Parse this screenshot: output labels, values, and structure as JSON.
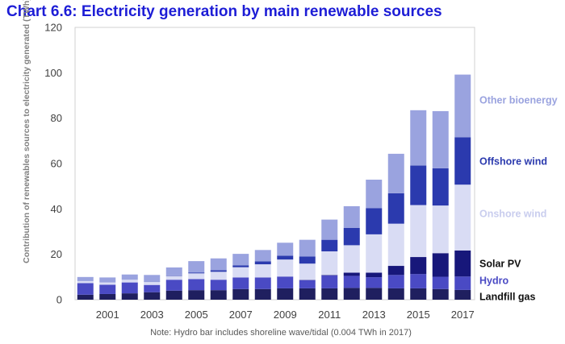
{
  "chart_data": {
    "type": "bar",
    "stacked": true,
    "title": "Chart 6.6: Electricity generation by main renewable sources",
    "ylabel": "Contribution of  renewables sources to electricity generated (TWh)",
    "ylim": [
      0,
      120
    ],
    "yticks": [
      0,
      20,
      40,
      60,
      80,
      100,
      120
    ],
    "grid": false,
    "legend_position": "right",
    "note": "Note: Hydro bar includes shoreline wave/tidal (0.004 TWh in 2017)",
    "categories": [
      "2000",
      "2001",
      "2002",
      "2003",
      "2004",
      "2005",
      "2006",
      "2007",
      "2008",
      "2009",
      "2010",
      "2011",
      "2012",
      "2013",
      "2014",
      "2015",
      "2016",
      "2017"
    ],
    "x_tick_labels": [
      "2001",
      "2003",
      "2005",
      "2007",
      "2009",
      "2011",
      "2013",
      "2015",
      "2017"
    ],
    "series": [
      {
        "name": "Landfill gas",
        "color": "#1f1f5f",
        "values": [
          2.2,
          2.5,
          2.8,
          3.3,
          4.0,
          4.2,
          4.2,
          4.7,
          4.7,
          5.0,
          5.0,
          5.0,
          5.2,
          5.2,
          5.0,
          5.0,
          4.7,
          4.3
        ]
      },
      {
        "name": "Hydro",
        "color": "#4a4ac4",
        "values": [
          5.1,
          4.1,
          4.8,
          3.2,
          4.8,
          4.9,
          4.6,
          5.1,
          5.1,
          5.2,
          3.6,
          5.7,
          5.3,
          4.7,
          5.9,
          6.3,
          5.4,
          5.9
        ]
      },
      {
        "name": "Solar PV",
        "color": "#17177a",
        "values": [
          0.0,
          0.0,
          0.0,
          0.0,
          0.0,
          0.0,
          0.0,
          0.0,
          0.0,
          0.0,
          0.1,
          0.2,
          1.4,
          2.0,
          4.0,
          7.5,
          10.4,
          11.5
        ]
      },
      {
        "name": "Onshore wind",
        "color": "#d9dcf4",
        "values": [
          0.9,
          1.0,
          1.2,
          1.3,
          1.7,
          2.5,
          3.5,
          4.5,
          5.8,
          7.5,
          7.2,
          10.4,
          12.1,
          16.9,
          18.6,
          22.9,
          21.0,
          29.0
        ]
      },
      {
        "name": "Offshore wind",
        "color": "#2b3aae",
        "values": [
          0.0,
          0.0,
          0.0,
          0.1,
          0.2,
          0.4,
          0.7,
          0.8,
          1.3,
          1.7,
          3.1,
          5.1,
          7.6,
          11.5,
          13.4,
          17.4,
          16.4,
          20.9
        ]
      },
      {
        "name": "Other bioenergy",
        "color": "#9aa3df",
        "values": [
          1.8,
          2.2,
          2.3,
          3.0,
          3.5,
          5.0,
          5.2,
          5.1,
          5.0,
          5.7,
          7.4,
          8.9,
          9.6,
          12.6,
          17.4,
          24.4,
          25.2,
          27.6
        ]
      }
    ],
    "legend_entries": [
      {
        "label": "Other bioenergy",
        "color": "#9aa3df",
        "value": 88
      },
      {
        "label": "Offshore wind",
        "color": "#2b3aae",
        "value": 61
      },
      {
        "label": "Onshore wind",
        "color": "#d9dcf4",
        "value": 38
      },
      {
        "label": "Solar PV",
        "color": "#17177a",
        "value": 16
      },
      {
        "label": "Hydro",
        "color": "#4a4ac4",
        "value": 8.5
      },
      {
        "label": "Landfill gas",
        "color": "#1f1f5f",
        "value": 1.5
      }
    ]
  }
}
